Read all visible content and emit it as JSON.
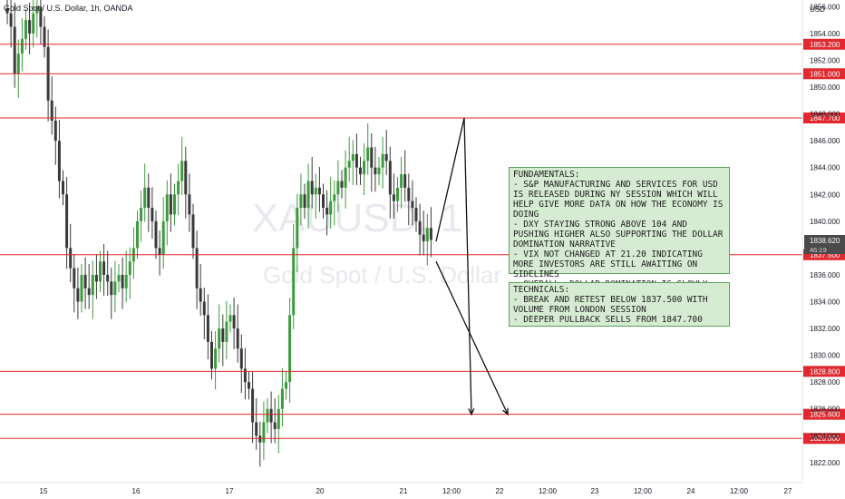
{
  "header": {
    "symbol_line": "Gold Spot / U.S. Dollar, 1h, OANDA"
  },
  "watermark": {
    "ticker": "XAUUSD, 1",
    "name": "Gold Spot / U.S. Dollar"
  },
  "price_axis": {
    "currency": "USD",
    "current_price": "1838.620",
    "countdown": "46:19"
  },
  "notes": {
    "fundamentals": "FUNDAMENTALS:\n- S&P MANUFACTURING AND SERVICES FOR USD IS RELEASED DURING NY SESSION WHICH WILL HELP GIVE MORE DATA ON HOW THE ECONOMY IS DOING\n- DXY STAYING STRONG ABOVE 104 AND PUSHING HIGHER ALSO SUPPORTING THE DOLLAR DOMINATION NARRATIVE\n- VIX NOT CHANGED AT 21.20 INDICATING MORE INVESTORS ARE STILL AWAITING ON SIDELINES\n- OVERALL, DOLLAR DOMINATION IS SLOWLY CREEPING BACK INTO EFFECT",
    "technicals": "TECHNICALS:\n- BREAK AND RETEST BELOW 1837.500 WITH VOLUME FROM LONDON SESSION\n- DEEPER PULLBACK SELLS FROM 1847.700"
  },
  "colors": {
    "up": "#26a69a",
    "up_fill": "#3d9a3d",
    "down": "#3a3a3a",
    "level_line": "#e0282e",
    "axis_text": "#131722"
  },
  "chart_data": {
    "type": "candlestick",
    "symbol": "Gold Spot / U.S. Dollar",
    "interval": "1h",
    "source": "OANDA",
    "ylim": [
      1820.5,
      1856.5
    ],
    "y_ticks": [
      1822,
      1824,
      1826,
      1828,
      1830,
      1832,
      1834,
      1836,
      1838,
      1840,
      1842,
      1844,
      1846,
      1848,
      1850,
      1852,
      1854,
      1856
    ],
    "x_ticks": [
      "15",
      "16",
      "17",
      "20",
      "21",
      "12:00",
      "22",
      "12:00",
      "23",
      "12:00",
      "24",
      "12:00",
      "27"
    ],
    "levels": [
      1853.2,
      1851.0,
      1847.7,
      1837.5,
      1828.8,
      1825.6,
      1823.8
    ],
    "level_labels": [
      "1853.200",
      "1851.000",
      "1847.700",
      "1837.500",
      "1828.800",
      "1825.600",
      "1823.800"
    ],
    "last_price": 1838.62,
    "projection": [
      {
        "x": "21 09:00",
        "y": 1838.5
      },
      {
        "x": "21 16:00",
        "y": 1847.7
      },
      {
        "x": "22 00:00",
        "y": 1825.6
      },
      {
        "x": "21 09:00",
        "y": 1837.0
      },
      {
        "x": "22 04:00",
        "y": 1825.6
      }
    ],
    "closes": [
      1855.5,
      1854.5,
      1851,
      1852.5,
      1853.6,
      1855,
      1854,
      1855.5,
      1856,
      1854.5,
      1853,
      1849,
      1847.5,
      1846,
      1843,
      1842,
      1838,
      1836.5,
      1835,
      1834,
      1836,
      1835,
      1834.5,
      1836,
      1835.5,
      1837,
      1836,
      1835.5,
      1834.5,
      1835.5,
      1836,
      1835,
      1836,
      1837,
      1838,
      1840,
      1841,
      1842.5,
      1841,
      1840,
      1838,
      1837.5,
      1840,
      1842,
      1840.5,
      1842,
      1843,
      1844.5,
      1842,
      1840.5,
      1838,
      1835,
      1834,
      1833,
      1831,
      1829,
      1830.5,
      1832,
      1831,
      1832.5,
      1833,
      1832,
      1830.5,
      1829,
      1828,
      1827.5,
      1825,
      1824,
      1823.5,
      1825,
      1826,
      1825,
      1824.5,
      1826,
      1827.5,
      1828,
      1833,
      1838,
      1841,
      1842,
      1841,
      1843,
      1842,
      1842.5,
      1842,
      1841,
      1840.5,
      1841.5,
      1842,
      1843,
      1842.5,
      1844,
      1844.5,
      1845,
      1844,
      1843.5,
      1844.5,
      1845.5,
      1844,
      1843.5,
      1844,
      1845,
      1844.5,
      1842,
      1841.5,
      1842.5,
      1843.5,
      1842.5,
      1841.5,
      1841,
      1840,
      1839,
      1838.5,
      1839.5,
      1838.62
    ]
  }
}
